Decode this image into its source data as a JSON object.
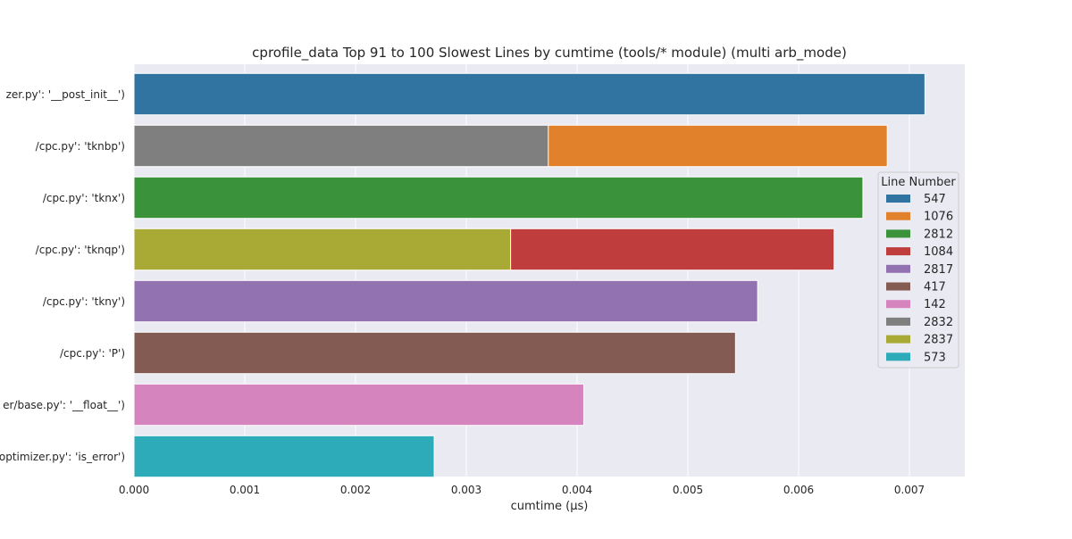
{
  "chart_data": {
    "type": "bar",
    "orientation": "horizontal",
    "title": "cprofile_data Top 91 to 100 Slowest Lines by cumtime (tools/* module) (multi arb_mode)",
    "xlabel": "cumtime (μs)",
    "ylabel": "",
    "xlim": [
      0,
      0.0075
    ],
    "xticks": [
      0.0,
      0.001,
      0.002,
      0.003,
      0.004,
      0.005,
      0.006,
      0.007
    ],
    "xtick_labels": [
      "0.000",
      "0.001",
      "0.002",
      "0.003",
      "0.004",
      "0.005",
      "0.006",
      "0.007"
    ],
    "grid": true,
    "categories": [
      "zer.py': '__post_init__')",
      "/cpc.py': 'tknbp')",
      "/cpc.py': 'tknx')",
      "/cpc.py': 'tknqp')",
      "/cpc.py': 'tkny')",
      "/cpc.py': 'P')",
      "er/base.py': '__float__')",
      "optimizer.py': 'is_error')"
    ],
    "bars": [
      {
        "category_index": 0,
        "line": "547",
        "value": 0.00714
      },
      {
        "category_index": 1,
        "line": "1076",
        "value": 0.0068
      },
      {
        "category_index": 1,
        "line": "2832",
        "value": 0.00374
      },
      {
        "category_index": 2,
        "line": "2812",
        "value": 0.00658
      },
      {
        "category_index": 3,
        "line": "1084",
        "value": 0.00632
      },
      {
        "category_index": 3,
        "line": "2837",
        "value": 0.0034
      },
      {
        "category_index": 4,
        "line": "2817",
        "value": 0.00563
      },
      {
        "category_index": 5,
        "line": "417",
        "value": 0.00543
      },
      {
        "category_index": 6,
        "line": "142",
        "value": 0.00406
      },
      {
        "category_index": 7,
        "line": "573",
        "value": 0.00271
      }
    ],
    "legend": {
      "title": "Line Number",
      "placement": "right",
      "entries": [
        {
          "label": "547",
          "color": "#3274a1"
        },
        {
          "label": "1076",
          "color": "#e1812c"
        },
        {
          "label": "2812",
          "color": "#3a923a"
        },
        {
          "label": "1084",
          "color": "#c03d3e"
        },
        {
          "label": "2817",
          "color": "#9372b2"
        },
        {
          "label": "417",
          "color": "#845b53"
        },
        {
          "label": "142",
          "color": "#d684bd"
        },
        {
          "label": "2832",
          "color": "#7f7f7f"
        },
        {
          "label": "2837",
          "color": "#a9aa35"
        },
        {
          "label": "573",
          "color": "#2eabb8"
        }
      ]
    },
    "colors": {
      "plot_background": "#eaeaf2",
      "grid": "#ffffff",
      "text": "#262626"
    }
  }
}
